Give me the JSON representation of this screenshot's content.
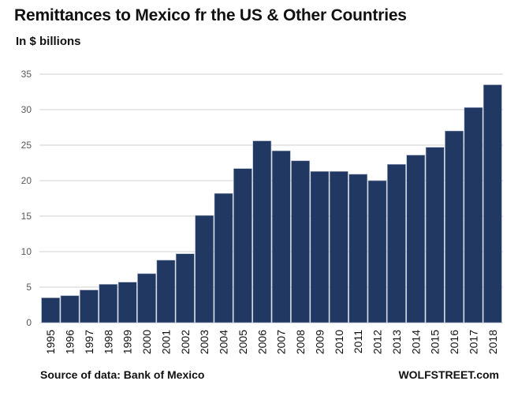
{
  "chart_data": {
    "type": "bar",
    "title": "Remittances to Mexico fr the US & Other Countries",
    "subtitle": "In $ billions",
    "xlabel": "",
    "ylabel": "",
    "categories": [
      "1995",
      "1996",
      "1997",
      "1998",
      "1999",
      "2000",
      "2001",
      "2002",
      "2003",
      "2004",
      "2005",
      "2006",
      "2007",
      "2008",
      "2009",
      "2010",
      "2011",
      "2012",
      "2013",
      "2014",
      "2015",
      "2016",
      "2017",
      "2018"
    ],
    "values": [
      3.5,
      3.8,
      4.6,
      5.4,
      5.7,
      6.9,
      8.8,
      9.7,
      15.1,
      18.2,
      21.7,
      25.6,
      24.2,
      22.8,
      21.3,
      21.3,
      20.9,
      20.0,
      22.3,
      23.6,
      24.7,
      27.0,
      30.3,
      33.5
    ],
    "ylim": [
      0,
      35
    ],
    "yticks": [
      0,
      5,
      10,
      15,
      20,
      25,
      30,
      35
    ],
    "grid": true,
    "bar_color": "#213863",
    "legend": "none"
  },
  "footer": {
    "source": "Source of data: Bank of Mexico",
    "brand": "WOLFSTREET.com"
  }
}
